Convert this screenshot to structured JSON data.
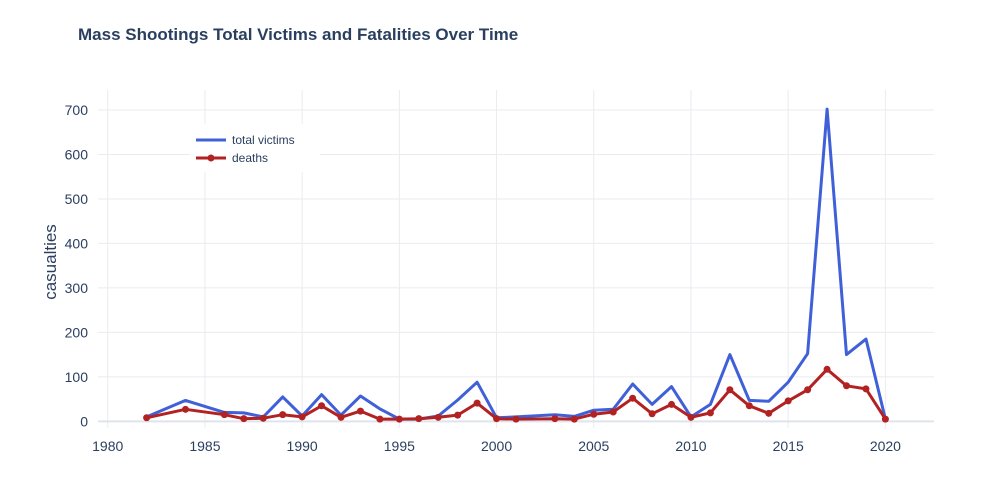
{
  "chart_data": {
    "type": "line",
    "title": "Mass Shootings Total Victims and Fatalities Over Time",
    "xlabel": "",
    "ylabel": "casualties",
    "xlim": [
      1979.5,
      2022.5
    ],
    "ylim": [
      -15,
      745
    ],
    "x_ticks": [
      1980,
      1985,
      1990,
      1995,
      2000,
      2005,
      2010,
      2015,
      2020
    ],
    "y_ticks": [
      0,
      100,
      200,
      300,
      400,
      500,
      600,
      700
    ],
    "grid": true,
    "legend_position": "top-left",
    "series": [
      {
        "name": "total victims",
        "color": "#4060d8",
        "markers": false,
        "x": [
          1982,
          1984,
          1986,
          1987,
          1988,
          1989,
          1990,
          1991,
          1992,
          1993,
          1994,
          1995,
          1996,
          1997,
          1998,
          1999,
          2000,
          2001,
          2003,
          2004,
          2005,
          2006,
          2007,
          2008,
          2009,
          2010,
          2011,
          2012,
          2013,
          2014,
          2015,
          2016,
          2017,
          2018,
          2019,
          2020
        ],
        "y": [
          10,
          47,
          20,
          19,
          10,
          55,
          12,
          60,
          14,
          57,
          28,
          5,
          5,
          12,
          48,
          88,
          8,
          10,
          15,
          11,
          25,
          27,
          84,
          38,
          78,
          10,
          38,
          150,
          47,
          45,
          88,
          152,
          702,
          150,
          185,
          5
        ]
      },
      {
        "name": "deaths",
        "color": "#b22222",
        "markers": true,
        "x": [
          1982,
          1984,
          1986,
          1987,
          1988,
          1989,
          1990,
          1991,
          1992,
          1993,
          1994,
          1995,
          1996,
          1997,
          1998,
          1999,
          2000,
          2001,
          2003,
          2004,
          2005,
          2006,
          2007,
          2008,
          2009,
          2010,
          2011,
          2012,
          2013,
          2014,
          2015,
          2016,
          2017,
          2018,
          2019,
          2020
        ],
        "y": [
          8,
          27,
          15,
          6,
          7,
          15,
          10,
          35,
          9,
          23,
          5,
          5,
          6,
          9,
          14,
          41,
          6,
          5,
          6,
          5,
          16,
          21,
          52,
          17,
          38,
          9,
          19,
          71,
          35,
          18,
          46,
          71,
          117,
          80,
          73,
          5
        ]
      }
    ]
  }
}
